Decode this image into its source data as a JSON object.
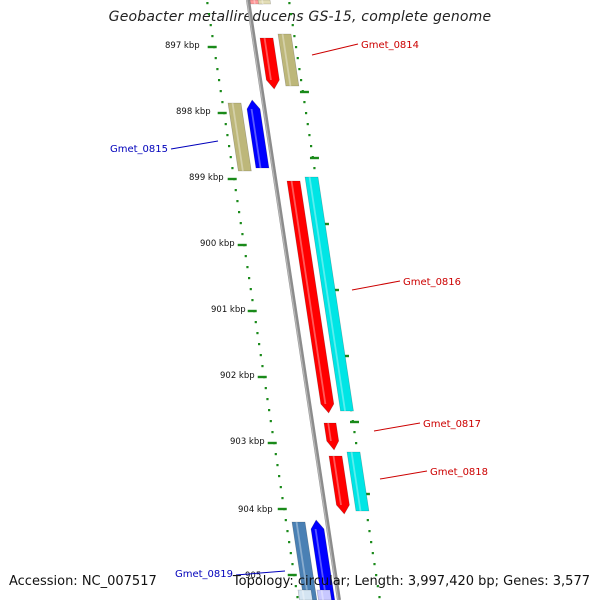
{
  "title": "Geobacter metallireducens GS-15, complete genome",
  "footer": {
    "accession": "Accession: NC_007517",
    "summary": "Topology: circular; Length: 3,997,420 bp; Genes: 3,577"
  },
  "scale_labels": [
    "897 kbp",
    "898 kbp",
    "899 kbp",
    "900 kbp",
    "901 kbp",
    "902 kbp",
    "903 kbp",
    "904 kbp",
    "905"
  ],
  "genes": [
    {
      "label": "Gmet_0814",
      "color": "#cc0000"
    },
    {
      "label": "Gmet_0815",
      "color": "#0000bb"
    },
    {
      "label": "Gmet_0816",
      "color": "#cc0000"
    },
    {
      "label": "Gmet_0817",
      "color": "#cc0000"
    },
    {
      "label": "Gmet_0818",
      "color": "#cc0000"
    },
    {
      "label": "Gmet_0819",
      "color": "#0000bb"
    }
  ],
  "colors": {
    "forward_gene": "#ff0000",
    "reverse_gene": "#0000ff",
    "cds_khaki": "#bdb77a",
    "cds_cyan": "#00e5e5",
    "cds_steel": "#4a80b4",
    "scale_dots": "#1a8a1a",
    "backbone": "#8c8c8c"
  }
}
